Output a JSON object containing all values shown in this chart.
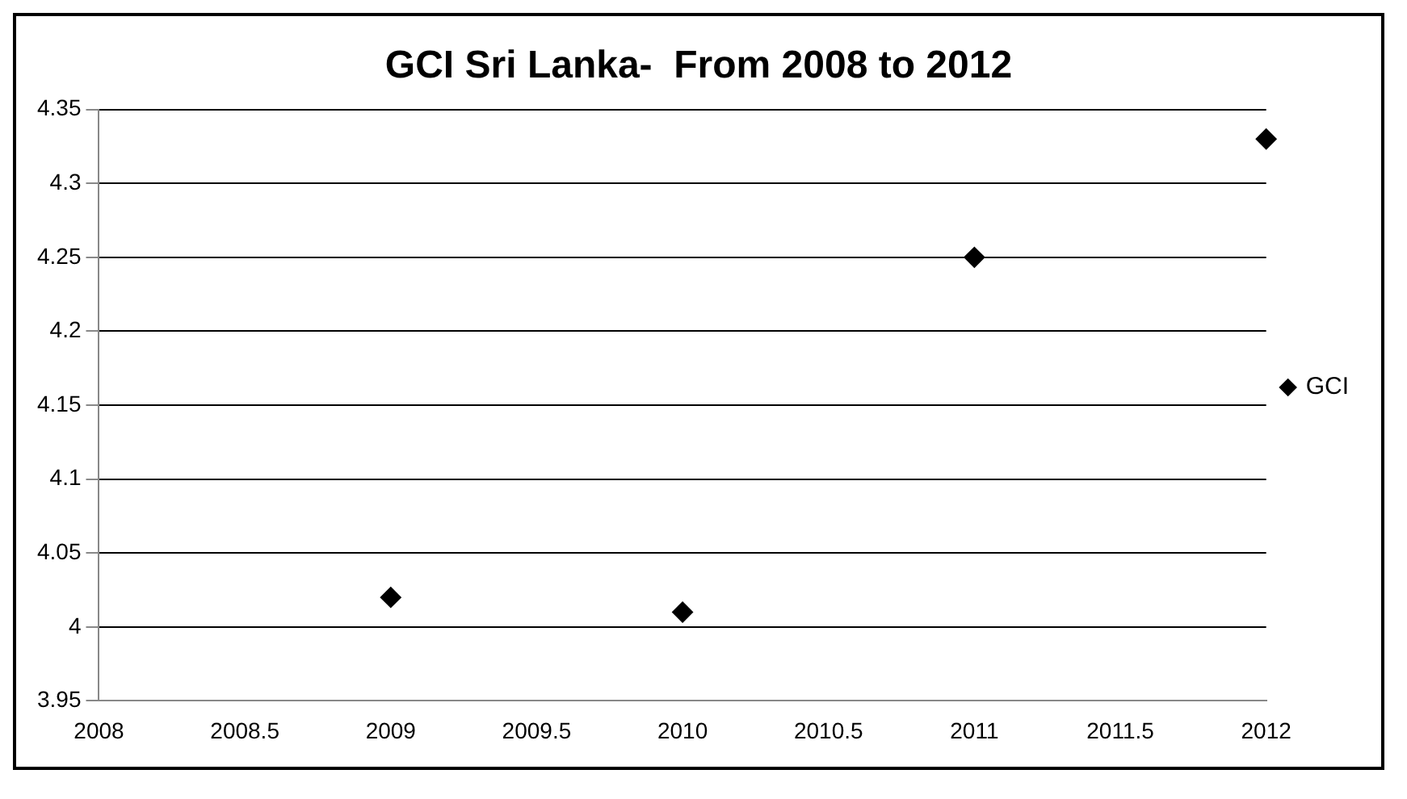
{
  "chart_data": {
    "type": "scatter",
    "title": "GCI Sri Lanka-  From 2008 to 2012",
    "x": [
      2009,
      2010,
      2011,
      2012
    ],
    "series": [
      {
        "name": "GCI",
        "color": "#000000",
        "values": [
          4.02,
          4.01,
          4.25,
          4.33
        ]
      }
    ],
    "xlim": [
      2008,
      2012
    ],
    "xticks": [
      2008,
      2008.5,
      2009,
      2009.5,
      2010,
      2010.5,
      2011,
      2011.5,
      2012
    ],
    "ylim": [
      3.95,
      4.35
    ],
    "yticks": [
      3.95,
      4,
      4.05,
      4.1,
      4.15,
      4.2,
      4.25,
      4.3,
      4.35
    ],
    "grid": "y",
    "legend": "right",
    "marker": "diamond"
  }
}
